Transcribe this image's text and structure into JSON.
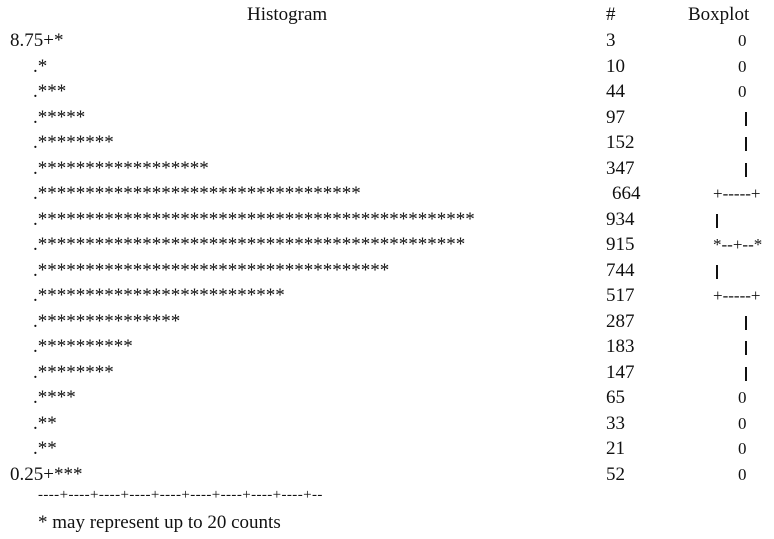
{
  "chart_data": {
    "type": "table",
    "histogram_title": "Histogram",
    "count_header": "#",
    "boxplot_title": "Boxplot",
    "top_label": "8.75+",
    "bottom_label": "0.25+",
    "rows": [
      {
        "stars": "*",
        "count": "3",
        "box": "0"
      },
      {
        "stars": "*",
        "count": "10",
        "box": "0"
      },
      {
        "stars": "***",
        "count": "44",
        "box": "0"
      },
      {
        "stars": "*****",
        "count": "97",
        "box": "|"
      },
      {
        "stars": "********",
        "count": "152",
        "box": "|"
      },
      {
        "stars": "******************",
        "count": "347",
        "box": "|"
      },
      {
        "stars": "**********************************",
        "count": "664",
        "box": "+-----+"
      },
      {
        "stars": "**********************************************",
        "count": "934",
        "box": "|     |"
      },
      {
        "stars": "*********************************************",
        "count": "915",
        "box": "*--+--*"
      },
      {
        "stars": "*************************************",
        "count": "744",
        "box": "|     |"
      },
      {
        "stars": "**************************",
        "count": "517",
        "box": "+-----+"
      },
      {
        "stars": "***************",
        "count": "287",
        "box": "|"
      },
      {
        "stars": "**********",
        "count": "183",
        "box": "|"
      },
      {
        "stars": "********",
        "count": "147",
        "box": "|"
      },
      {
        "stars": "****",
        "count": "65",
        "box": "0"
      },
      {
        "stars": "**",
        "count": "33",
        "box": "0"
      },
      {
        "stars": "**",
        "count": "21",
        "box": "0"
      },
      {
        "stars": "***",
        "count": "52",
        "box": "0"
      }
    ],
    "axis_line": "----+----+----+----+----+----+----+----+----+--",
    "footnote": "* may represent up to 20 counts"
  }
}
